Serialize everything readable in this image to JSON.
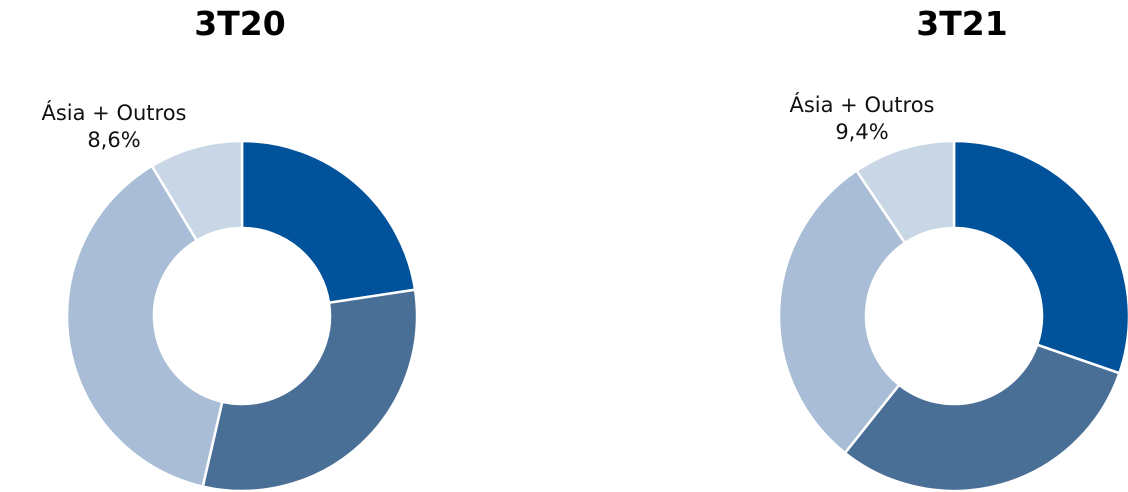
{
  "chart_data": [
    {
      "type": "pie",
      "donut": true,
      "title": "3T20",
      "categories": [
        "",
        "",
        "",
        "Ásia + Outros"
      ],
      "values": [
        22.6,
        31.0,
        37.8,
        8.6
      ],
      "colors": [
        "#00529b",
        "#4a6f96",
        "#a9bed6",
        "#c8d6e5"
      ],
      "data_labels": [
        "",
        "",
        "",
        "8,6%"
      ]
    },
    {
      "type": "pie",
      "donut": true,
      "title": "3T21",
      "categories": [
        "",
        "",
        "",
        "Ásia + Outros"
      ],
      "values": [
        30.3,
        30.4,
        29.9,
        9.4
      ],
      "colors": [
        "#00529b",
        "#4a6f96",
        "#a9bed6",
        "#c8d6e5"
      ],
      "data_labels": [
        "",
        "",
        "",
        "9,4%"
      ]
    }
  ]
}
